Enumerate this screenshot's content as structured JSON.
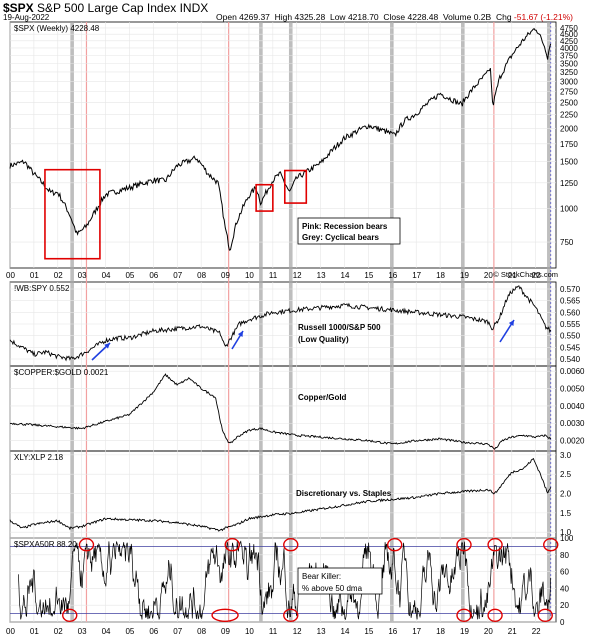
{
  "header": {
    "symbol": "$SPX",
    "name": "S&P 500 Large Cap Index",
    "exchange": "INDX",
    "date": "19-Aug-2022",
    "open_label": "Open",
    "open": "4269.37",
    "high_label": "High",
    "high": "4325.28",
    "low_label": "Low",
    "low": "4218.70",
    "close_label": "Close",
    "close": "4228.48",
    "volume_label": "Volume",
    "volume": "0.2B",
    "chg_label": "Chg",
    "chg": "-51.67 (-1.21%)",
    "credit": "© StockCharts.com"
  },
  "colors": {
    "recession": "#f2a0a0",
    "cyclical": "#a8a8a8",
    "highlight_box": "#e00000",
    "arrow": "#2040e0",
    "circle": "#e00000"
  },
  "chart_data": [
    {
      "type": "line",
      "title": "$SPX (Weekly) 4228.48",
      "x_ticks": [
        "00",
        "01",
        "02",
        "03",
        "04",
        "05",
        "06",
        "07",
        "08",
        "09",
        "10",
        "11",
        "12",
        "13",
        "14",
        "15",
        "16",
        "17",
        "18",
        "19",
        "20",
        "21",
        "22"
      ],
      "y_ticks": [
        750,
        1000,
        1250,
        1500,
        1750,
        2000,
        2250,
        2500,
        2750,
        3000,
        3250,
        3500,
        3750,
        4000,
        4250,
        4500,
        4750
      ],
      "log_scale": true,
      "x": [
        2000.0,
        2000.6,
        2001.0,
        2001.7,
        2002.0,
        2002.5,
        2002.8,
        2003.2,
        2003.6,
        2004.0,
        2005.0,
        2006.0,
        2006.5,
        2007.0,
        2007.8,
        2008.3,
        2008.7,
        2009.0,
        2009.2,
        2009.5,
        2010.0,
        2010.3,
        2010.5,
        2011.0,
        2011.3,
        2011.7,
        2012.0,
        2013.0,
        2014.0,
        2015.0,
        2015.7,
        2016.1,
        2016.5,
        2017.0,
        2018.0,
        2018.9,
        2019.0,
        2019.5,
        2020.0,
        2020.1,
        2020.2,
        2020.5,
        2021.0,
        2021.5,
        2022.0,
        2022.4,
        2022.5,
        2022.63
      ],
      "values": [
        1450,
        1500,
        1350,
        1150,
        1150,
        950,
        800,
        860,
        990,
        1130,
        1200,
        1280,
        1270,
        1450,
        1550,
        1350,
        1250,
        850,
        700,
        900,
        1120,
        1200,
        1050,
        1280,
        1350,
        1150,
        1300,
        1480,
        1840,
        2050,
        1950,
        1880,
        2130,
        2270,
        2700,
        2450,
        2550,
        2900,
        3230,
        3380,
        2400,
        3100,
        3750,
        4300,
        4766,
        4000,
        3700,
        4228
      ],
      "annotations": [
        "Pink: Recession bears",
        "Grey: Cyclical bears"
      ]
    },
    {
      "type": "line",
      "title": "!WB:SPY 0.552",
      "label": "Russell 1000/S&P 500 (Low Quality)",
      "y_ticks": [
        0.54,
        0.545,
        0.55,
        0.555,
        0.56,
        0.565,
        0.57
      ],
      "ylim": [
        0.537,
        0.573
      ],
      "x": [
        2000.0,
        2000.5,
        2001.0,
        2001.5,
        2002.0,
        2002.6,
        2003.0,
        2003.5,
        2004.0,
        2004.5,
        2005.0,
        2006.0,
        2007.0,
        2008.0,
        2008.8,
        2009.0,
        2009.3,
        2009.6,
        2010.0,
        2011.0,
        2012.0,
        2013.0,
        2014.0,
        2015.0,
        2016.0,
        2017.0,
        2018.0,
        2019.0,
        2019.5,
        2020.0,
        2020.2,
        2020.5,
        2020.8,
        2021.0,
        2021.3,
        2021.6,
        2022.0,
        2022.4,
        2022.63
      ],
      "values": [
        0.548,
        0.545,
        0.542,
        0.543,
        0.541,
        0.54,
        0.542,
        0.545,
        0.548,
        0.549,
        0.549,
        0.552,
        0.553,
        0.554,
        0.551,
        0.545,
        0.55,
        0.555,
        0.557,
        0.56,
        0.561,
        0.562,
        0.563,
        0.562,
        0.561,
        0.56,
        0.559,
        0.558,
        0.557,
        0.556,
        0.553,
        0.558,
        0.566,
        0.569,
        0.571,
        0.567,
        0.562,
        0.554,
        0.552
      ]
    },
    {
      "type": "line",
      "title": "$COPPER:$GOLD 0.0021",
      "label": "Copper/Gold",
      "y_ticks": [
        0.002,
        0.003,
        0.004,
        0.005,
        0.006
      ],
      "ylim": [
        0.0014,
        0.0063
      ],
      "x": [
        2000.0,
        2001.0,
        2002.0,
        2003.0,
        2004.0,
        2005.0,
        2006.0,
        2006.5,
        2007.0,
        2007.5,
        2008.0,
        2008.6,
        2008.9,
        2009.2,
        2009.5,
        2010.0,
        2010.5,
        2011.0,
        2012.0,
        2013.0,
        2014.0,
        2015.0,
        2016.0,
        2017.0,
        2018.0,
        2019.0,
        2020.0,
        2020.3,
        2020.6,
        2021.0,
        2021.5,
        2022.0,
        2022.4,
        2022.63
      ],
      "values": [
        0.003,
        0.0029,
        0.0028,
        0.0027,
        0.0031,
        0.0035,
        0.0048,
        0.0058,
        0.0052,
        0.0056,
        0.005,
        0.0045,
        0.0025,
        0.0018,
        0.0022,
        0.0026,
        0.0027,
        0.0025,
        0.0023,
        0.0022,
        0.0021,
        0.002,
        0.0018,
        0.002,
        0.0021,
        0.0019,
        0.0018,
        0.0015,
        0.002,
        0.0022,
        0.0023,
        0.0022,
        0.0023,
        0.0021
      ]
    },
    {
      "type": "line",
      "title": "XLY:XLP 2.18",
      "label": "Discretionary vs. Staples",
      "y_ticks": [
        1.0,
        1.5,
        2.0,
        2.5,
        3.0
      ],
      "ylim": [
        0.85,
        3.1
      ],
      "x": [
        2000.0,
        2000.5,
        2001.0,
        2001.5,
        2002.0,
        2002.5,
        2003.0,
        2004.0,
        2005.0,
        2006.0,
        2007.0,
        2008.0,
        2008.8,
        2009.0,
        2009.5,
        2010.0,
        2011.0,
        2012.0,
        2013.0,
        2014.0,
        2015.0,
        2016.0,
        2017.0,
        2018.0,
        2019.0,
        2020.0,
        2020.3,
        2020.8,
        2021.0,
        2021.5,
        2021.9,
        2022.2,
        2022.5,
        2022.63
      ],
      "values": [
        1.3,
        1.1,
        1.2,
        1.25,
        1.3,
        1.1,
        1.15,
        1.35,
        1.32,
        1.3,
        1.25,
        1.15,
        1.05,
        1.1,
        1.2,
        1.35,
        1.45,
        1.5,
        1.6,
        1.7,
        1.8,
        1.85,
        1.9,
        2.0,
        2.05,
        2.1,
        2.0,
        2.4,
        2.55,
        2.65,
        2.9,
        2.5,
        2.0,
        2.18
      ]
    },
    {
      "type": "line",
      "title": "$SPXA50R 88.20",
      "label": "Bear Killer: % above 50 dma",
      "y_ticks": [
        0,
        20,
        40,
        60,
        80,
        100
      ],
      "ylim": [
        0,
        100
      ],
      "ref_lines": [
        10,
        90
      ]
    }
  ]
}
